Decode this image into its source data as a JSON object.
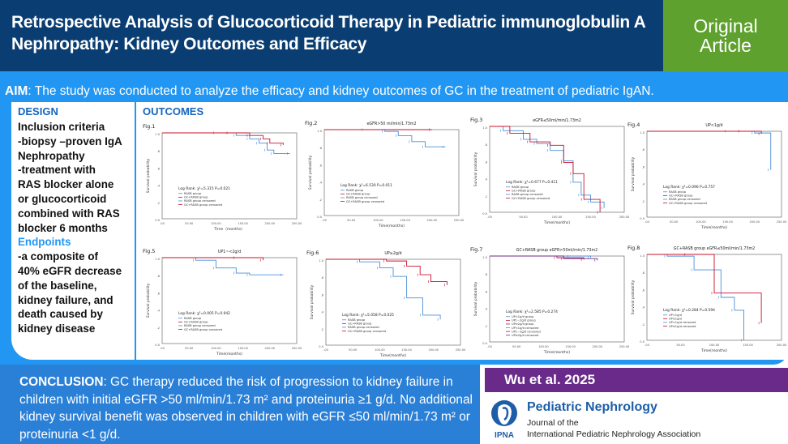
{
  "header": {
    "title": "Retrospective Analysis of Glucocorticoid Therapy in Pediatric immunoglobulin A Nephropathy: Kidney Outcomes and Efficacy",
    "badge_line1": "Original",
    "badge_line2": "Article"
  },
  "aim": {
    "label": "AIM",
    "text": ": The study was conducted to analyze the efficacy and kidney outcomes of GC in the treatment of pediatric IgAN."
  },
  "design": {
    "title": "DESIGN",
    "lines": [
      "Inclusion criteria",
      "-biopsy –proven IgA",
      "Nephropathy",
      "-treatment with",
      "RAS blocker alone",
      "or glucocorticoid",
      "combined with RAS",
      "blocker 6 months"
    ],
    "endpoints_title": "Endpoints",
    "endpoint_lines": [
      "-a composite of",
      "40% eGFR decrease",
      "of the baseline,",
      "kidney failure, and",
      "death caused by",
      "kidney disease"
    ]
  },
  "outcomes": {
    "title": "OUTCOMES",
    "figures": [
      {
        "label": "Fig.1",
        "subtitle": "",
        "logrank": "Log Rank: χ²=5.315  P=0.021",
        "legend": [
          "RASB group",
          "GC+RASB group",
          "RASB group censored",
          "GC+RASB group censored"
        ],
        "xticks": [
          ".00",
          "50.00",
          "100.00",
          "150.00",
          "200.00",
          "250.00"
        ],
        "xlabel": "Time（months）",
        "ylabel": "Survival probability"
      },
      {
        "label": "Fig.2",
        "subtitle": "eGFR>50 ml/min/1.73m2",
        "logrank": "Log Rank: χ²=6.530  P=0.011",
        "legend": [
          "RASB group",
          "GC+RASB group",
          "RASB group censored",
          "GC+RASB group censored"
        ],
        "xticks": [
          ".00",
          "50.00",
          "100.00",
          "150.00",
          "200.00",
          "250.00"
        ],
        "xlabel": "Time(months)",
        "ylabel": "Survival probability"
      },
      {
        "label": "Fig.3",
        "subtitle": "eGFR≤50ml/min/1.73m2",
        "logrank": "Log Rank: χ²=0.677  P=0.411",
        "legend": [
          "RASB group",
          "GC+RASB group",
          "RASB group censored",
          "GC+RASB group censored"
        ],
        "xticks": [
          ".00",
          "50.00",
          "100.00",
          "150.00",
          "200.00"
        ],
        "xlabel": "Time(months)",
        "ylabel": "Survival probability"
      },
      {
        "label": "Fig.4",
        "subtitle": "UP<1g/d",
        "logrank": "Log Rank: χ²=0.096  P=0.757",
        "legend": [
          "RASB group",
          "GC+RASB group",
          "RASB group censored",
          "GC+RASB group censored"
        ],
        "xticks": [
          ".00",
          "50.00",
          "100.00",
          "150.00",
          "200.00",
          "250.00"
        ],
        "xlabel": "Time(months)",
        "ylabel": "Survival probability"
      },
      {
        "label": "Fig.5",
        "subtitle": "UP1~<2g/d",
        "logrank": "Log Rank: χ²=0.005  P=0.942",
        "legend": [
          "RASB group",
          "GC+RASB group",
          "RASB group censored",
          "GC+RASB group censored"
        ],
        "xticks": [
          ".00",
          "50.00",
          "100.00",
          "150.00",
          "200.00",
          "250.00"
        ],
        "xlabel": "Time(months)",
        "ylabel": "Survival probability"
      },
      {
        "label": "Fig.6",
        "subtitle": "UP≥2g/d",
        "logrank": "Log Rank: χ²=5.058  P=0.025",
        "legend": [
          "RASB group",
          "GC+RASB group",
          "RASB group censored",
          "GC+RASB group censored"
        ],
        "xticks": [
          ".00",
          "50.00",
          "100.00",
          "150.00",
          "200.00",
          "250.00"
        ],
        "xlabel": "Time(months)",
        "ylabel": "Survival probability"
      },
      {
        "label": "Fig.7",
        "subtitle": "GC+RASB group eGFR>50ml/min/1.73m2",
        "logrank": "Log Rank: χ²=2.585  P=0.274",
        "legend": [
          "UP<1g/d group",
          "UP1~2g/d group",
          "UP≥2g/d group",
          "UP<1g/d censored",
          "UP1~2g/d censored",
          "UP≥2g/d censored"
        ],
        "xticks": [
          ".00",
          "50.00",
          "100.00",
          "150.00",
          "200.00",
          "250.00"
        ],
        "xlabel": "Time(months)",
        "ylabel": "Survival probability"
      },
      {
        "label": "Fig.8",
        "subtitle": "GC+RASB group eGFR≤50ml/min/1.73m2",
        "logrank": "Log Rank: χ²=0.284  P=0.594",
        "legend": [
          "UP<1g/d",
          "UP≥1g/d",
          "UP<1g/d censored",
          "UP≥1g/d censored"
        ],
        "xticks": [
          ".00",
          "50.00",
          "100.00",
          "150.00",
          "200.00"
        ],
        "xlabel": "Time(months)",
        "ylabel": "Survival probability"
      }
    ]
  },
  "conclusion": {
    "label": "CONCLUSION",
    "text": ": GC therapy reduced the risk of progression to kidney failure in children with initial eGFR >50 ml/min/1.73 m² and proteinuria ≥1 g/d. No additional kidney survival benefit was observed in children with eGFR ≤50 ml/min/1.73 m² or proteinuria <1 g/d."
  },
  "citation": "Wu et al. 2025",
  "journal": {
    "name": "Pediatric Nephrology",
    "sub1": "Journal of the",
    "sub2": "International Pediatric Nephrology Association",
    "logo_text": "IPNA"
  },
  "colors": {
    "header_bg": "#0a3d72",
    "badge_bg": "#5fa12f",
    "band_bg": "#2196f3",
    "conclusion_bg": "#2a7fd6",
    "citation_bg": "#6a2a8a",
    "series_rasb": "#4a8fd9",
    "series_gc": "#c8102e",
    "series_third": "#6b2a8a"
  }
}
